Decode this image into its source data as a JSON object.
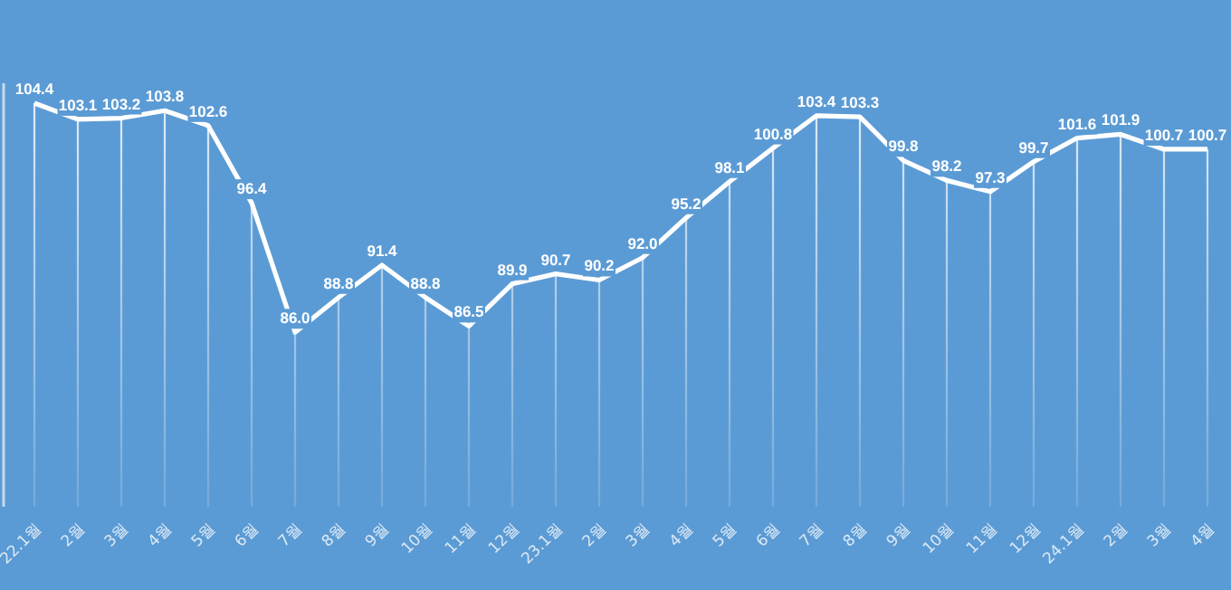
{
  "chart_data": {
    "type": "line",
    "categories": [
      "22.1월",
      "2월",
      "3월",
      "4월",
      "5월",
      "6월",
      "7월",
      "8월",
      "9월",
      "10월",
      "11월",
      "12월",
      "23.1월",
      "2월",
      "3월",
      "4월",
      "5월",
      "6월",
      "7월",
      "8월",
      "9월",
      "10월",
      "11월",
      "12월",
      "24.1월",
      "2월",
      "3월",
      "4월"
    ],
    "values": [
      104.4,
      103.1,
      103.2,
      103.8,
      102.6,
      96.4,
      86.0,
      88.8,
      91.4,
      88.8,
      86.5,
      89.9,
      90.7,
      90.2,
      92.0,
      95.2,
      98.1,
      100.8,
      103.4,
      103.3,
      99.8,
      98.2,
      97.3,
      99.7,
      101.6,
      101.9,
      100.7,
      100.7
    ],
    "value_labels": [
      "104.4",
      "103.1",
      "103.2",
      "103.8",
      "102.6",
      "96.4",
      "86.0",
      "88.8",
      "91.4",
      "88.8",
      "86.5",
      "89.9",
      "90.7",
      "90.2",
      "92.0",
      "95.2",
      "98.1",
      "100.8",
      "103.4",
      "103.3",
      "99.8",
      "98.2",
      "97.3",
      "99.7",
      "101.6",
      "101.9",
      "100.7",
      "100.7"
    ],
    "color": "#ffffff",
    "ylim": [
      72,
      106
    ],
    "grid": "x",
    "tick_labels": "x",
    "marker": "none",
    "line_style": "solid"
  }
}
